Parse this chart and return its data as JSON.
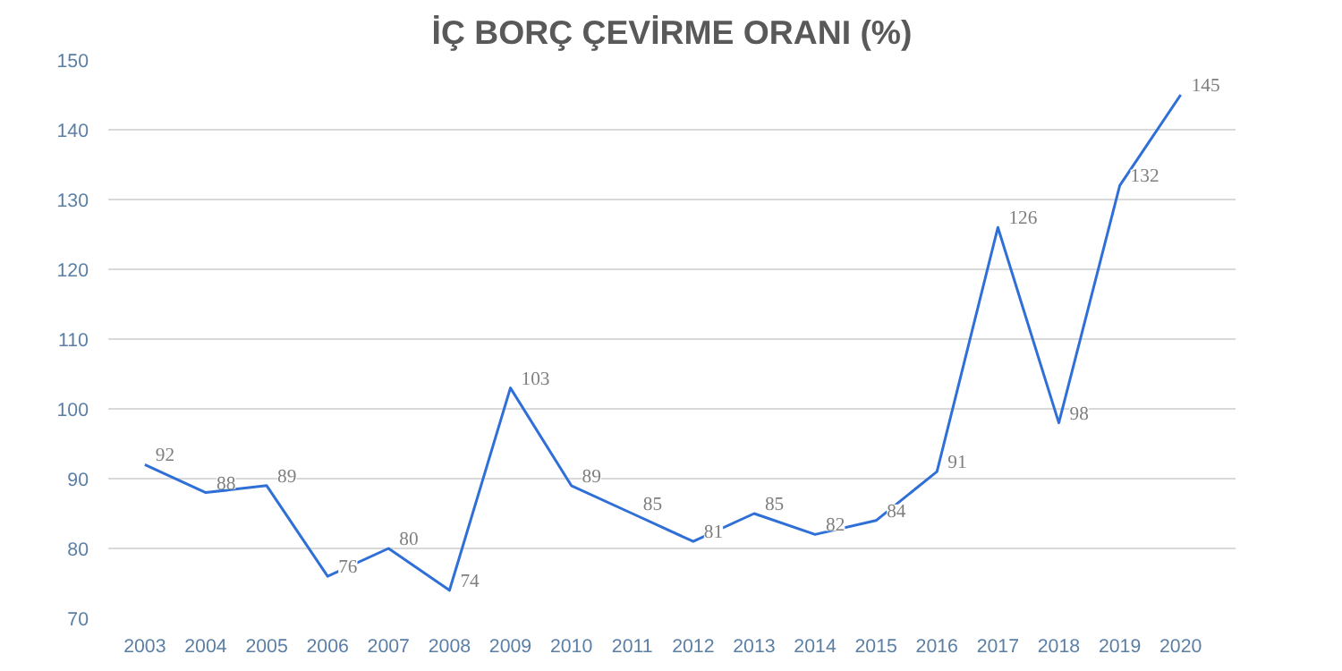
{
  "chart_data": {
    "type": "line",
    "title": "İÇ BORÇ ÇEVİRME ORANI (%)",
    "categories": [
      "2003",
      "2004",
      "2005",
      "2006",
      "2007",
      "2008",
      "2009",
      "2010",
      "2011",
      "2012",
      "2013",
      "2014",
      "2015",
      "2016",
      "2017",
      "2018",
      "2019",
      "2020"
    ],
    "series": [
      {
        "color": "#2f6fd6",
        "values": [
          92,
          88,
          89,
          76,
          80,
          74,
          103,
          89,
          85,
          81,
          85,
          82,
          84,
          91,
          126,
          98,
          132,
          145
        ]
      }
    ],
    "ylim": [
      70,
      150
    ],
    "yticks": [
      70,
      80,
      90,
      100,
      110,
      120,
      130,
      140,
      150
    ],
    "grid": "y",
    "data_labels": true,
    "marker": "none",
    "line_style": "solid"
  }
}
